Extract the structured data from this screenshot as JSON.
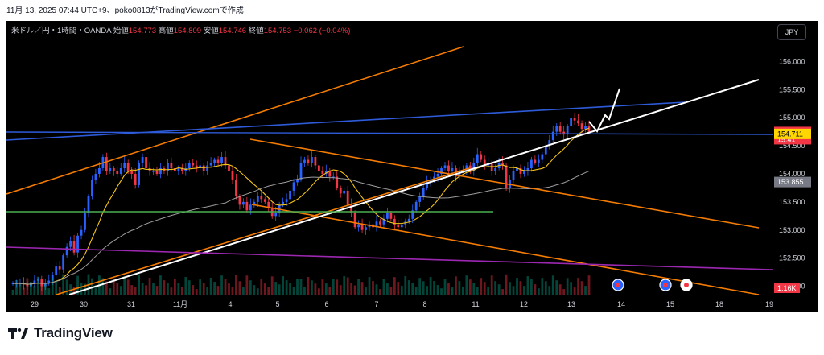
{
  "caption": "11月 13, 2025 07:44 UTC+9、poko0813がTradingView.comで作成",
  "legend": {
    "symbol": "米ドル／円・1時間・OANDA",
    "open_label": "始値",
    "open": "154.773",
    "high_label": "高値",
    "high": "154.809",
    "low_label": "安値",
    "low": "154.746",
    "close_label": "終値",
    "close": "154.753",
    "change": "−0.062 (−0.04%)"
  },
  "currency_button": "JPY",
  "brand": "TradingView",
  "colors": {
    "background": "#000000",
    "up": "#089981",
    "down": "#f23645",
    "candle_up": "#2962ff",
    "orange": "#f57c00",
    "blue_line": "#2e5bd9",
    "white_line": "#ffffff",
    "green_line": "#4caf50",
    "purple_line": "#9c27b0",
    "ma_short": "#f5c518",
    "ma_long": "#9e9e9e"
  },
  "chart_data": {
    "type": "candlestick",
    "symbol": "USDJPY",
    "timeframe": "1h",
    "x_ticks": [
      "29",
      "30",
      "31",
      "11月",
      "4",
      "5",
      "6",
      "7",
      "8",
      "11",
      "12",
      "13",
      "14",
      "15",
      "18",
      "19"
    ],
    "y_ticks": [
      "156.000",
      "155.500",
      "155.000",
      "154.500",
      "154.000",
      "153.500",
      "153.000",
      "152.500",
      "152.000"
    ],
    "ylim": [
      151.85,
      156.35
    ],
    "price_labels": [
      {
        "label": "154.753",
        "sub": "15:41",
        "value": 154.753,
        "color": "#f23645"
      },
      {
        "label": "154.711",
        "value": 154.711,
        "color": "#ffd600"
      },
      {
        "label": "153.855",
        "value": 153.855,
        "color": "#787b86"
      }
    ],
    "volume_label": "1.16K",
    "closes": [
      152.05,
      152.05,
      152.05,
      152.03,
      152.0,
      152.05,
      152.1,
      152.12,
      152.0,
      152.05,
      152.1,
      152.2,
      152.35,
      152.3,
      152.55,
      152.7,
      152.8,
      152.6,
      152.9,
      153.0,
      153.3,
      153.6,
      153.9,
      154.0,
      154.1,
      154.3,
      154.05,
      154.1,
      154.05,
      154.0,
      154.1,
      154.2,
      154.05,
      154.0,
      153.8,
      154.2,
      154.3,
      154.1,
      154.05,
      154.05,
      154.0,
      154.1,
      154.05,
      154.2,
      154.1,
      154.05,
      154.1,
      154.05,
      154.1,
      154.2,
      154.15,
      154.1,
      154.15,
      154.05,
      154.15,
      154.2,
      154.25,
      154.2,
      154.3,
      154.15,
      154.05,
      153.9,
      153.6,
      153.45,
      153.5,
      153.35,
      153.45,
      153.5,
      153.6,
      153.55,
      153.5,
      153.4,
      153.25,
      153.3,
      153.45,
      153.5,
      153.55,
      153.7,
      153.85,
      153.9,
      154.2,
      154.25,
      154.2,
      154.3,
      154.15,
      154.05,
      154.0,
      154.05,
      153.95,
      153.95,
      153.75,
      153.65,
      153.7,
      153.45,
      153.3,
      153.05,
      153.1,
      153.0,
      153.05,
      153.1,
      153.05,
      153.15,
      153.1,
      153.2,
      153.3,
      153.2,
      153.1,
      153.05,
      153.1,
      153.15,
      153.2,
      153.35,
      153.5,
      153.6,
      153.75,
      153.85,
      153.9,
      153.95,
      154.0,
      154.1,
      154.15,
      154.05,
      154.1,
      153.95,
      154.05,
      154.05,
      154.15,
      154.05,
      154.2,
      154.35,
      154.25,
      154.15,
      154.2,
      154.05,
      154.1,
      154.2,
      154.15,
      153.75,
      153.9,
      154.05,
      154.1,
      154.0,
      154.05,
      154.1,
      154.25,
      154.2,
      154.25,
      154.35,
      154.5,
      154.6,
      154.75,
      154.85,
      154.75,
      154.7,
      154.85,
      155.0,
      154.95,
      154.9,
      154.8,
      154.85,
      154.75
    ]
  }
}
